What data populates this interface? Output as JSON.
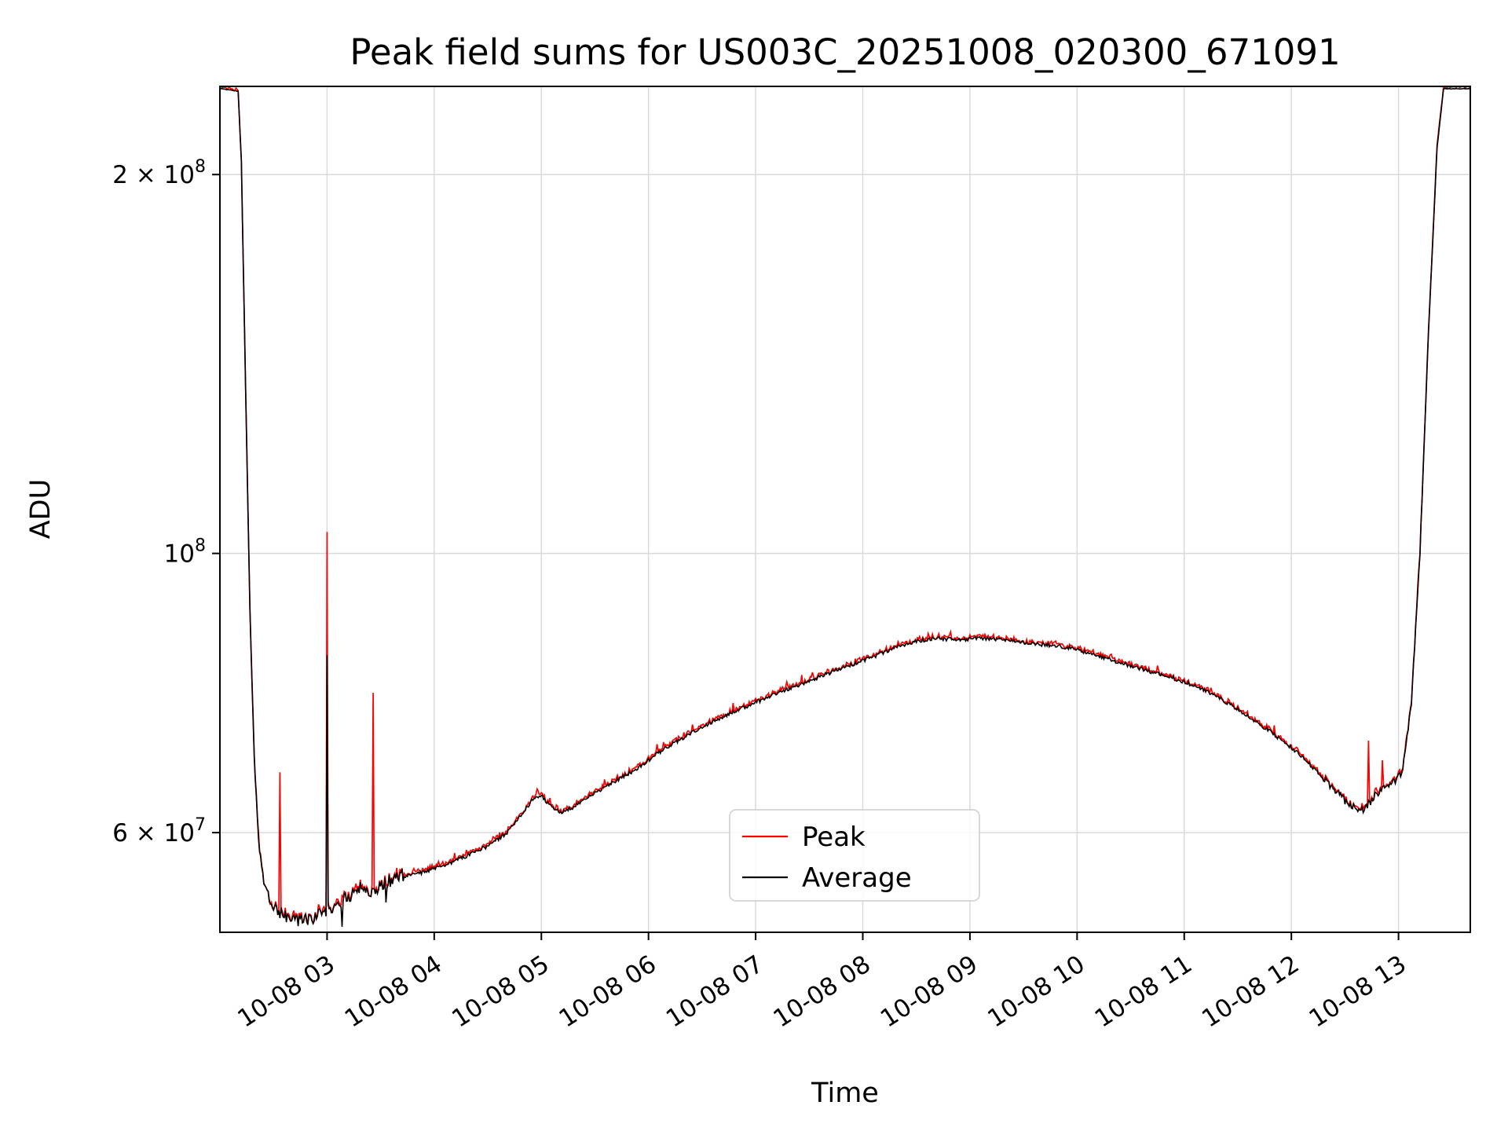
{
  "chart_data": {
    "type": "line",
    "title": "Peak field sums for US003C_20251008_020300_671091",
    "xlabel": "Time",
    "ylabel": "ADU",
    "y_scale": "log",
    "x_unit": "hours on 2025-10-08",
    "x_range": [
      2.0,
      13.67
    ],
    "y_range": [
      50000000.0,
      235000000.0
    ],
    "grid": true,
    "grid_color": "#dadada",
    "x_ticks": [
      {
        "t": 3,
        "label": "10-08 03"
      },
      {
        "t": 4,
        "label": "10-08 04"
      },
      {
        "t": 5,
        "label": "10-08 05"
      },
      {
        "t": 6,
        "label": "10-08 06"
      },
      {
        "t": 7,
        "label": "10-08 07"
      },
      {
        "t": 8,
        "label": "10-08 08"
      },
      {
        "t": 9,
        "label": "10-08 09"
      },
      {
        "t": 10,
        "label": "10-08 10"
      },
      {
        "t": 11,
        "label": "10-08 11"
      },
      {
        "t": 12,
        "label": "10-08 12"
      },
      {
        "t": 13,
        "label": "10-08 13"
      }
    ],
    "y_ticks": [
      {
        "v": 200000000.0,
        "base": "2 × 10",
        "exp": "8"
      },
      {
        "v": 100000000.0,
        "base": "10",
        "exp": "8"
      },
      {
        "v": 60000000.0,
        "base": "6 × 10",
        "exp": "7"
      }
    ],
    "series": [
      {
        "name": "Peak",
        "color": "#ff0000"
      },
      {
        "name": "Average",
        "color": "#000000"
      }
    ],
    "legend": {
      "entries": [
        "Peak",
        "Average"
      ],
      "position": "lower-center"
    },
    "average_keypoints": [
      [
        2.0,
        234000000.0
      ],
      [
        2.17,
        233000000.0
      ],
      [
        2.2,
        205000000.0
      ],
      [
        2.24,
        135000000.0
      ],
      [
        2.28,
        90000000.0
      ],
      [
        2.32,
        69000000.0
      ],
      [
        2.36,
        59000000.0
      ],
      [
        2.42,
        54500000.0
      ],
      [
        2.5,
        52500000.0
      ],
      [
        2.6,
        51500000.0
      ],
      [
        2.72,
        51000000.0
      ],
      [
        2.85,
        51200000.0
      ],
      [
        2.95,
        51800000.0
      ],
      [
        3.05,
        52400000.0
      ],
      [
        3.18,
        53200000.0
      ],
      [
        3.3,
        54200000.0
      ],
      [
        3.42,
        54000000.0
      ],
      [
        3.55,
        54800000.0
      ],
      [
        3.7,
        55500000.0
      ],
      [
        3.9,
        55800000.0
      ],
      [
        4.1,
        56500000.0
      ],
      [
        4.3,
        57500000.0
      ],
      [
        4.5,
        58500000.0
      ],
      [
        4.68,
        60000000.0
      ],
      [
        4.82,
        62000000.0
      ],
      [
        4.93,
        64000000.0
      ],
      [
        5.0,
        64200000.0
      ],
      [
        5.08,
        63000000.0
      ],
      [
        5.18,
        62200000.0
      ],
      [
        5.32,
        63000000.0
      ],
      [
        5.5,
        64500000.0
      ],
      [
        5.7,
        66000000.0
      ],
      [
        5.9,
        67500000.0
      ],
      [
        6.1,
        69500000.0
      ],
      [
        6.3,
        71200000.0
      ],
      [
        6.5,
        72800000.0
      ],
      [
        6.7,
        74200000.0
      ],
      [
        6.9,
        75500000.0
      ],
      [
        7.1,
        76800000.0
      ],
      [
        7.3,
        78000000.0
      ],
      [
        7.5,
        79200000.0
      ],
      [
        7.7,
        80400000.0
      ],
      [
        7.9,
        81600000.0
      ],
      [
        8.1,
        82800000.0
      ],
      [
        8.3,
        84200000.0
      ],
      [
        8.5,
        85200000.0
      ],
      [
        8.7,
        85600000.0
      ],
      [
        8.9,
        85400000.0
      ],
      [
        9.1,
        85600000.0
      ],
      [
        9.3,
        85400000.0
      ],
      [
        9.5,
        85000000.0
      ],
      [
        9.7,
        84600000.0
      ],
      [
        9.9,
        84200000.0
      ],
      [
        10.1,
        83400000.0
      ],
      [
        10.3,
        82400000.0
      ],
      [
        10.5,
        81400000.0
      ],
      [
        10.7,
        80500000.0
      ],
      [
        10.9,
        79600000.0
      ],
      [
        11.1,
        78500000.0
      ],
      [
        11.3,
        77000000.0
      ],
      [
        11.5,
        75200000.0
      ],
      [
        11.7,
        73200000.0
      ],
      [
        11.9,
        71200000.0
      ],
      [
        12.1,
        69000000.0
      ],
      [
        12.3,
        66200000.0
      ],
      [
        12.48,
        63800000.0
      ],
      [
        12.6,
        62800000.0
      ],
      [
        12.68,
        62600000.0
      ],
      [
        12.78,
        64200000.0
      ],
      [
        12.88,
        65200000.0
      ],
      [
        12.98,
        66000000.0
      ],
      [
        13.04,
        67200000.0
      ],
      [
        13.12,
        76000000.0
      ],
      [
        13.2,
        100000000.0
      ],
      [
        13.28,
        150000000.0
      ],
      [
        13.36,
        210000000.0
      ],
      [
        13.42,
        234000000.0
      ],
      [
        13.67,
        234000000.0
      ]
    ],
    "peak_spikes": [
      [
        2.56,
        67000000.0
      ],
      [
        3.0,
        104000000.0
      ],
      [
        3.43,
        77500000.0
      ],
      [
        12.72,
        71000000.0
      ],
      [
        12.85,
        68500000.0
      ]
    ],
    "average_spikes": [
      [
        3.0,
        83000000.0
      ],
      [
        3.14,
        50500000.0
      ],
      [
        3.55,
        52800000.0
      ]
    ],
    "noise": {
      "base": 0.0035,
      "regions": [
        [
          2.0,
          2.25,
          0.0006
        ],
        [
          2.35,
          3.75,
          0.012
        ],
        [
          12.3,
          13.05,
          0.007
        ],
        [
          13.25,
          13.67,
          0.0006
        ]
      ],
      "peak_extra": 0.006
    },
    "sample_step": 0.01
  }
}
